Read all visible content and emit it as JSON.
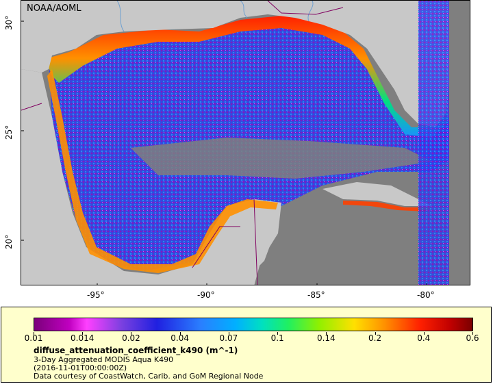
{
  "map": {
    "attribution": "NOAA/AOML",
    "lat_ticks": [
      "30°",
      "25°",
      "20°"
    ],
    "lon_ticks": [
      "-95°",
      "-90°",
      "-85°",
      "-80°"
    ]
  },
  "legend": {
    "colorbar_labels": [
      "0.01",
      "0.014",
      "0.02",
      "0.04",
      "0.07",
      "0.1",
      "0.14",
      "0.2",
      "0.4",
      "0.6"
    ],
    "variable_title": "diffuse_attenuation_coefficient_k490 (m^-1)",
    "dataset_name": "3-Day Aggregated MODIS Aqua K490",
    "time": "(2016-11-01T00:00:00Z)",
    "credit": "Data courtesy of CoastWatch, Carib. and GoM Regional Node"
  },
  "colors": {
    "land": "#c8c8c8",
    "no_data": "#7f7f7f",
    "legend_bg": "#ffffcc"
  }
}
